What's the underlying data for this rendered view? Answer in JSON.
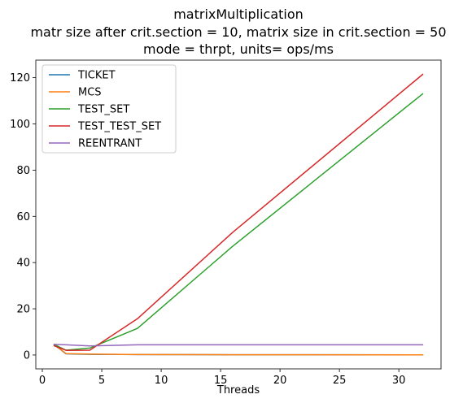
{
  "chart_data": {
    "type": "line",
    "title_lines": [
      "matrixMultiplication",
      "matr size after crit.section = 10, matrix size in crit.section = 50",
      "mode = thrpt, units= ops/ms"
    ],
    "xlabel": "Threads",
    "ylabel": "",
    "xlim": [
      -0.55,
      33.55
    ],
    "ylim": [
      -6.0,
      127.6
    ],
    "xticks": [
      0,
      5,
      10,
      15,
      20,
      25,
      30
    ],
    "yticks": [
      0,
      20,
      40,
      60,
      80,
      100,
      120
    ],
    "grid": false,
    "legend_position": "upper-left",
    "x": [
      1,
      2,
      4,
      8,
      16,
      32
    ],
    "series": [
      {
        "name": "TICKET",
        "color": "#1f77b4",
        "values": [
          4.5,
          0.5,
          0.3,
          0.2,
          0.1,
          0.05
        ]
      },
      {
        "name": "MCS",
        "color": "#ff7f0e",
        "values": [
          4.5,
          0.6,
          0.4,
          0.2,
          0.1,
          0.05
        ]
      },
      {
        "name": "TEST_SET",
        "color": "#2ca02c",
        "values": [
          4.5,
          2.1,
          3.0,
          11.5,
          47.0,
          113.0
        ]
      },
      {
        "name": "TEST_TEST_SET",
        "color": "#d62728",
        "values": [
          4.0,
          2.0,
          2.1,
          15.7,
          53.0,
          121.4
        ]
      },
      {
        "name": "REENTRANT",
        "color": "#9467bd",
        "values": [
          4.6,
          4.4,
          3.9,
          4.4,
          4.4,
          4.4
        ]
      }
    ]
  }
}
